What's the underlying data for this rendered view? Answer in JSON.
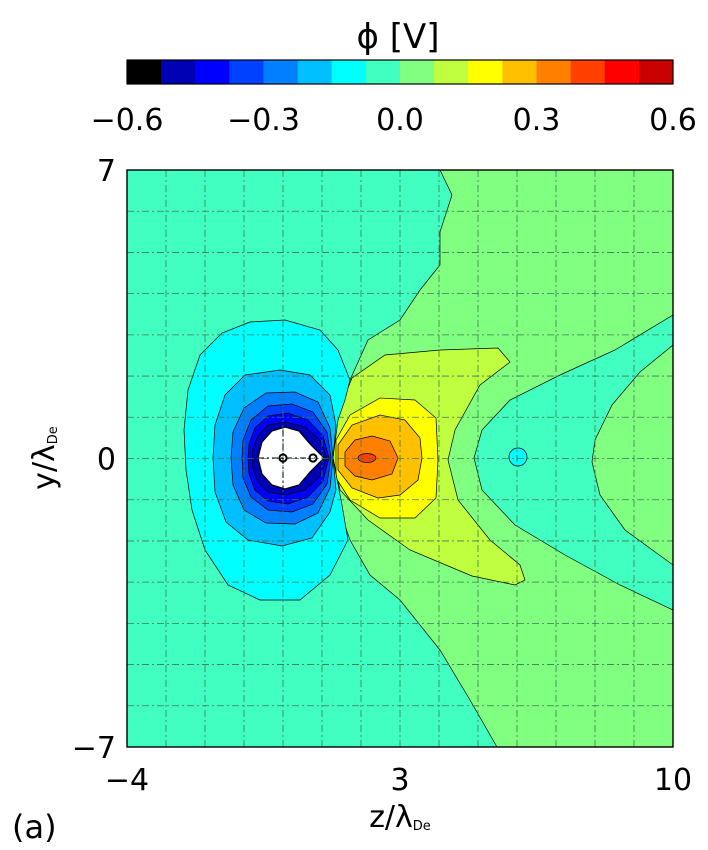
{
  "chart_data": {
    "type": "heatmap",
    "panel_label": "(a)",
    "colorbar": {
      "label": "ϕ [V]",
      "range": [
        -0.6,
        0.6
      ],
      "tick_labels": [
        "−0.6",
        "−0.3",
        "0.0",
        "0.3",
        "0.6"
      ],
      "tick_values": [
        -0.6,
        -0.3,
        0.0,
        0.3,
        0.6
      ],
      "colors": [
        "#000000",
        "#0000b4",
        "#0000ff",
        "#0040ff",
        "#0080ff",
        "#00bfff",
        "#00ffff",
        "#40ffc0",
        "#80ff80",
        "#c0ff40",
        "#ffff00",
        "#ffc000",
        "#ff8000",
        "#ff4000",
        "#ff0000",
        "#c80000"
      ]
    },
    "xlabel": "z/λ",
    "xlabel_sub": "De",
    "ylabel": "y/λ",
    "ylabel_sub": "De",
    "xlim": [
      -4,
      10
    ],
    "ylim": [
      -7,
      7
    ],
    "x_tick_labels": [
      "−4",
      "3",
      "10"
    ],
    "x_tick_values": [
      -4,
      3,
      10
    ],
    "y_tick_labels": [
      "7",
      "0",
      "−7"
    ],
    "y_tick_values": [
      7,
      0,
      -7
    ],
    "grid": true,
    "grid_step": 1,
    "background_level": 0.0,
    "object": {
      "shape": "ellipse",
      "center": [
        0,
        0
      ],
      "z_radius": 0.75,
      "y_radius": 0.72,
      "potential": "below -0.6",
      "markers": [
        [
          0,
          0
        ],
        [
          0.75,
          0
        ]
      ]
    },
    "features": [
      {
        "name": "negative potential well",
        "center": [
          0.1,
          0
        ],
        "extent_z": [
          -2.6,
          1.1
        ],
        "extent_y": [
          -3.5,
          3.5
        ],
        "min_value": -0.6
      },
      {
        "name": "positive potential peak",
        "center": [
          2.0,
          0
        ],
        "extent_z": [
          1.1,
          3.8
        ],
        "extent_y": [
          -2.0,
          2.0
        ],
        "max_value": 0.3
      },
      {
        "name": "positive wake",
        "center": [
          3.5,
          0
        ],
        "extent_z": [
          1.1,
          5.5
        ],
        "extent_y": [
          -3.0,
          3.0
        ],
        "max_value": 0.15
      },
      {
        "name": "small negative island",
        "center": [
          6.1,
          0
        ],
        "value": -0.05
      }
    ]
  }
}
